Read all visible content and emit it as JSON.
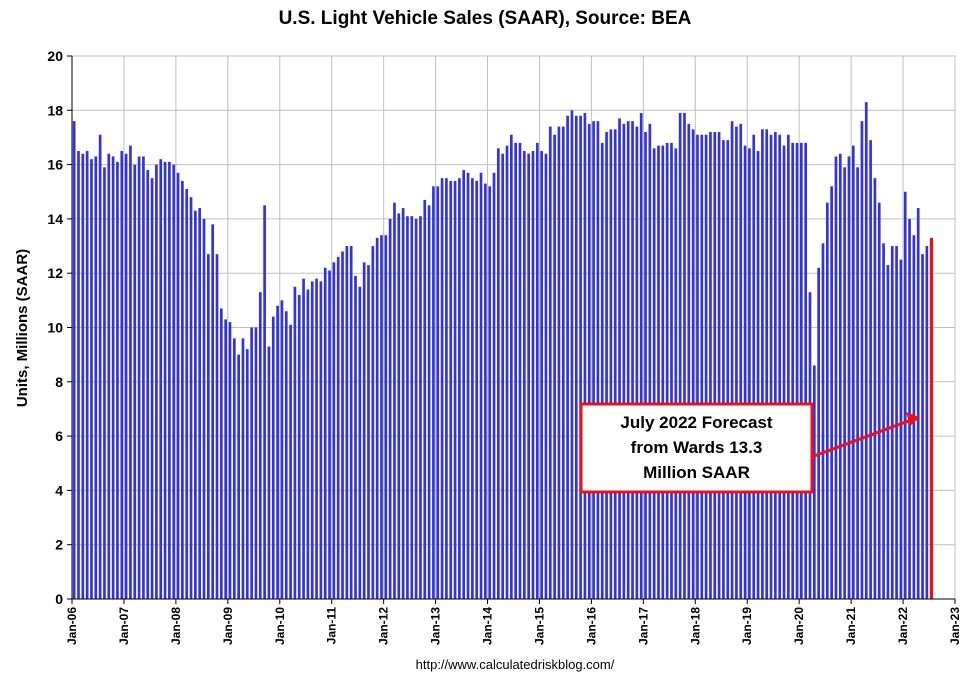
{
  "page_title": "U.S. Light Vehicle Sales (SAAR), Source: BEA",
  "source_url": "http://www.calculatedriskblog.com/",
  "callout": {
    "lines": [
      "July 2022 Forecast",
      "from Wards 13.3",
      "Million SAAR"
    ]
  },
  "colors": {
    "bar": "#3333dd",
    "forecast_bar": "#ee1111",
    "callout_border": "#ee1111",
    "arrow": "#ee1111",
    "grid": "#c0c0c0"
  },
  "chart_data": {
    "type": "bar",
    "title": "U.S. Light Vehicle Sales (SAAR), Source: BEA",
    "xlabel": "",
    "ylabel": "Units, Millions (SAAR)",
    "ylim": [
      0,
      20
    ],
    "y_ticks": [
      0,
      2,
      4,
      6,
      8,
      10,
      12,
      14,
      16,
      18,
      20
    ],
    "x_tick_labels": [
      "Jan-06",
      "Jan-07",
      "Jan-08",
      "Jan-09",
      "Jan-10",
      "Jan-11",
      "Jan-12",
      "Jan-13",
      "Jan-14",
      "Jan-15",
      "Jan-16",
      "Jan-17",
      "Jan-18",
      "Jan-19",
      "Jan-20",
      "Jan-21",
      "Jan-22",
      "Jan-23"
    ],
    "grid": true,
    "start": "Jan-06",
    "end": "Jul-22",
    "values": [
      17.6,
      16.5,
      16.4,
      16.5,
      16.2,
      16.3,
      17.1,
      15.9,
      16.4,
      16.3,
      16.1,
      16.5,
      16.4,
      16.7,
      16.0,
      16.3,
      16.3,
      15.8,
      15.5,
      16.0,
      16.2,
      16.1,
      16.1,
      16.0,
      15.7,
      15.4,
      15.1,
      14.8,
      14.3,
      14.4,
      14.0,
      12.7,
      13.8,
      12.7,
      10.7,
      10.3,
      10.2,
      9.6,
      9.0,
      9.6,
      9.2,
      10.0,
      10.0,
      11.3,
      14.5,
      9.3,
      10.4,
      10.8,
      11.0,
      10.6,
      10.1,
      11.5,
      11.2,
      11.8,
      11.4,
      11.7,
      11.8,
      11.7,
      12.2,
      12.1,
      12.4,
      12.6,
      12.8,
      13.0,
      13.0,
      11.9,
      11.5,
      12.4,
      12.3,
      13.0,
      13.3,
      13.4,
      13.4,
      14.0,
      14.6,
      14.2,
      14.4,
      14.1,
      14.1,
      14.0,
      14.1,
      14.7,
      14.5,
      15.2,
      15.2,
      15.5,
      15.5,
      15.4,
      15.4,
      15.5,
      15.8,
      15.7,
      15.5,
      15.4,
      15.7,
      15.3,
      15.2,
      15.7,
      16.6,
      16.4,
      16.7,
      17.1,
      16.8,
      16.8,
      16.5,
      16.4,
      16.5,
      16.8,
      16.5,
      16.4,
      17.4,
      17.1,
      17.4,
      17.4,
      17.8,
      18.0,
      17.8,
      17.8,
      17.9,
      17.5,
      17.6,
      17.6,
      16.8,
      17.2,
      17.3,
      17.3,
      17.7,
      17.5,
      17.6,
      17.6,
      17.4,
      17.9,
      17.2,
      17.5,
      16.6,
      16.7,
      16.7,
      16.8,
      16.8,
      16.6,
      17.9,
      17.9,
      17.5,
      17.3,
      17.1,
      17.1,
      17.1,
      17.2,
      17.2,
      17.2,
      16.9,
      16.9,
      17.6,
      17.4,
      17.5,
      16.7,
      16.6,
      17.1,
      16.5,
      17.3,
      17.3,
      17.1,
      17.2,
      17.1,
      16.7,
      17.1,
      16.8,
      16.8,
      16.8,
      16.8,
      11.3,
      8.6,
      12.2,
      13.1,
      14.6,
      15.2,
      16.3,
      16.4,
      15.9,
      16.3,
      16.7,
      15.9,
      17.6,
      18.3,
      16.9,
      15.5,
      14.6,
      13.1,
      12.3,
      13.0,
      13.0,
      12.5,
      15.0,
      14.0,
      13.4,
      14.4,
      12.7,
      13.0,
      13.3
    ],
    "forecast_index": 198
  }
}
